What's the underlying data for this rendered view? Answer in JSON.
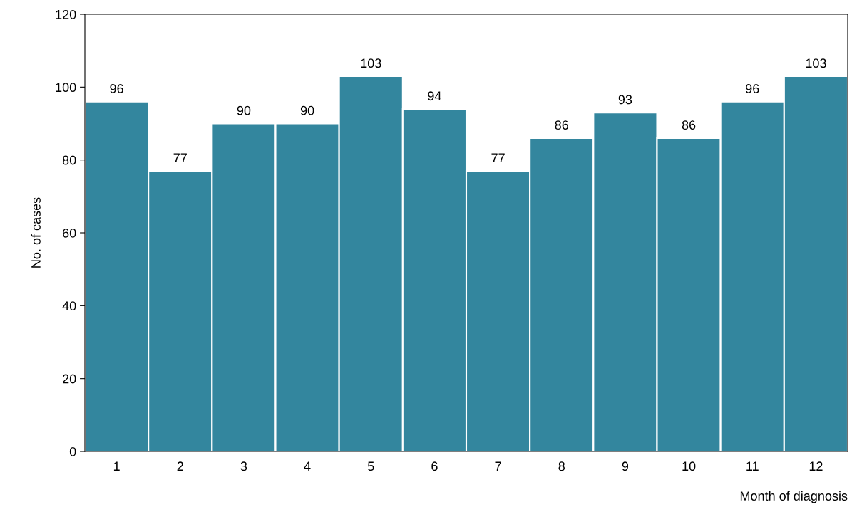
{
  "chart_data": {
    "type": "bar",
    "xlabel": "Month of diagnosis",
    "ylabel": "No. of cases",
    "categories": [
      "1",
      "2",
      "3",
      "4",
      "5",
      "6",
      "7",
      "8",
      "9",
      "10",
      "11",
      "12"
    ],
    "values": [
      96,
      77,
      90,
      90,
      103,
      94,
      77,
      86,
      93,
      86,
      96,
      103
    ],
    "color": "#33869e",
    "ylim": [
      0,
      120
    ],
    "yticks": [
      0,
      20,
      40,
      60,
      80,
      100,
      120
    ],
    "grid": false,
    "data_labels": true
  }
}
